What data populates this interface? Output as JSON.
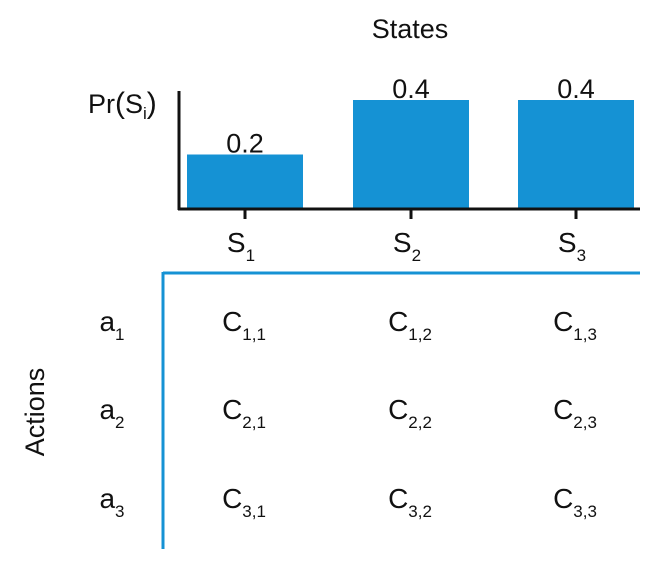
{
  "title": "States",
  "y_axis_label": {
    "base": "Pr",
    "open": "(",
    "var": "S",
    "sub": "i",
    "close": ")"
  },
  "row_axis_label": "Actions",
  "colors": {
    "bar": "#1592d4",
    "table_line": "#1592d4",
    "axis": "#111111",
    "text": "#111111"
  },
  "chart_data": {
    "type": "bar",
    "categories": [
      {
        "base": "S",
        "sub": "1"
      },
      {
        "base": "S",
        "sub": "2"
      },
      {
        "base": "S",
        "sub": "3"
      }
    ],
    "values": [
      0.2,
      0.4,
      0.4
    ],
    "value_labels": [
      "0.2",
      "0.4",
      "0.4"
    ],
    "ylim": [
      0,
      0.4
    ]
  },
  "table": {
    "rows": [
      {
        "base": "a",
        "sub": "1"
      },
      {
        "base": "a",
        "sub": "2"
      },
      {
        "base": "a",
        "sub": "3"
      }
    ],
    "cells": [
      [
        {
          "base": "C",
          "sub": "1,1"
        },
        {
          "base": "C",
          "sub": "1,2"
        },
        {
          "base": "C",
          "sub": "1,3"
        }
      ],
      [
        {
          "base": "C",
          "sub": "2,1"
        },
        {
          "base": "C",
          "sub": "2,2"
        },
        {
          "base": "C",
          "sub": "2,3"
        }
      ],
      [
        {
          "base": "C",
          "sub": "3,1"
        },
        {
          "base": "C",
          "sub": "3,2"
        },
        {
          "base": "C",
          "sub": "3,3"
        }
      ]
    ]
  }
}
